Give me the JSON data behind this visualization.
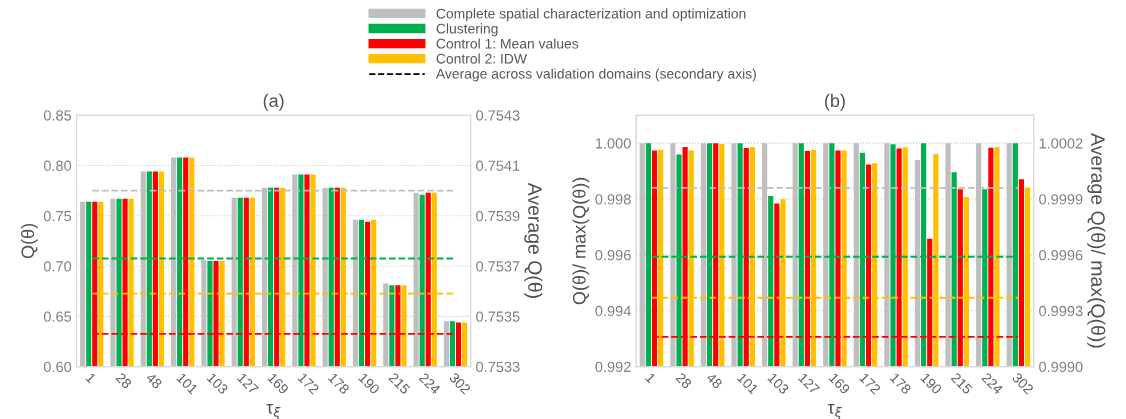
{
  "chart_data": [
    {
      "type": "bar",
      "title": "(a)",
      "xlabel": "τ$_{ξ}$",
      "ylabel": "Q(θ)",
      "y2label": "Average Q(θ)",
      "categories": [
        "1",
        "28",
        "48",
        "101",
        "103",
        "127",
        "169",
        "172",
        "178",
        "190",
        "215",
        "224",
        "302"
      ],
      "series": [
        {
          "name": "Complete spatial characterization and optimization",
          "color": "#bfbfbf",
          "values": [
            0.764,
            0.767,
            0.794,
            0.808,
            0.706,
            0.768,
            0.778,
            0.791,
            0.778,
            0.746,
            0.683,
            0.773,
            0.645
          ]
        },
        {
          "name": "Clustering",
          "color": "#00b050",
          "values": [
            0.764,
            0.767,
            0.794,
            0.808,
            0.705,
            0.768,
            0.778,
            0.791,
            0.778,
            0.746,
            0.681,
            0.771,
            0.645
          ]
        },
        {
          "name": "Control 1: Mean values",
          "color": "#ff0000",
          "values": [
            0.764,
            0.767,
            0.794,
            0.808,
            0.705,
            0.768,
            0.778,
            0.791,
            0.778,
            0.744,
            0.681,
            0.773,
            0.644
          ]
        },
        {
          "name": "Control 2: IDW",
          "color": "#ffc000",
          "values": [
            0.764,
            0.767,
            0.794,
            0.808,
            0.705,
            0.768,
            0.778,
            0.791,
            0.778,
            0.746,
            0.681,
            0.773,
            0.644
          ]
        }
      ],
      "ylim": [
        0.6,
        0.85
      ],
      "yticks": [
        {
          "value": 0.6,
          "label": "0.60"
        },
        0.65,
        {
          "value": 0.7,
          "label": "0.70"
        },
        0.75,
        {
          "value": 0.8,
          "label": "0.80"
        },
        0.85
      ],
      "y2lim": [
        0.7533,
        0.7543
      ],
      "y2ticks": [
        0.7533,
        0.7535,
        0.7537,
        0.7539,
        0.7541,
        0.7543
      ],
      "ref_lines": [
        {
          "axis": "y2",
          "value": 0.754,
          "color": "#bfbfbf",
          "line_style": "dashed"
        },
        {
          "axis": "y2",
          "value": 0.75373,
          "color": "#00b050",
          "line_style": "dashed"
        },
        {
          "axis": "y2",
          "value": 0.75343,
          "color": "#ff0000",
          "line_style": "dashed"
        },
        {
          "axis": "y2",
          "value": 0.75359,
          "color": "#ffc000",
          "line_style": "dashed"
        }
      ],
      "annotations": [
        "Average across validation domains (secondary axis)"
      ],
      "grid": "y",
      "legend": "top"
    },
    {
      "type": "bar",
      "title": "(b)",
      "xlabel": "τ$_{ξ}$",
      "ylabel": "Q(θ)/ max(Q(θ))",
      "y2label": "Average Q(θ)/ max(Q(θ))",
      "categories": [
        "1",
        "28",
        "48",
        "101",
        "103",
        "127",
        "169",
        "172",
        "178",
        "190",
        "215",
        "224",
        "302"
      ],
      "series": [
        {
          "color": "#bfbfbf",
          "values": [
            1.0,
            1.0,
            1.0,
            1.0,
            1.0,
            1.0,
            1.0,
            1.0,
            1.0,
            0.9994,
            1.0,
            1.0,
            1.0
          ]
        },
        {
          "color": "#00b050",
          "values": [
            1.0,
            0.99959,
            1.0,
            1.0,
            0.99811,
            1.0,
            1.0,
            0.99966,
            0.99996,
            1.0,
            0.99896,
            0.99835,
            1.0
          ]
        },
        {
          "color": "#ff0000",
          "values": [
            0.99974,
            0.99986,
            1.0,
            0.99983,
            0.99784,
            0.99972,
            0.99974,
            0.99924,
            0.99981,
            0.99658,
            0.99835,
            0.99984,
            0.99871
          ]
        },
        {
          "color": "#ffc000",
          "values": [
            0.99976,
            0.99975,
            0.99997,
            0.99986,
            0.99799,
            0.99976,
            0.99974,
            0.99928,
            0.99985,
            0.99961,
            0.99807,
            0.99986,
            0.99841
          ]
        }
      ],
      "ylim": [
        0.992,
        1.001
      ],
      "yticks": [
        0.992,
        0.994,
        0.996,
        0.998,
        {
          "value": 1.0,
          "label": "1.000"
        }
      ],
      "y2lim": [
        0.999,
        1.00035
      ],
      "y2ticks": [
        {
          "value": 0.999,
          "label": "0.9990"
        },
        0.9993,
        0.9996,
        0.9999,
        1.0002
      ],
      "ref_lines": [
        {
          "axis": "y2",
          "value": 0.99996,
          "color": "#bfbfbf",
          "line_style": "dashed"
        },
        {
          "axis": "y2",
          "value": 0.99959,
          "color": "#00b050",
          "line_style": "dashed"
        },
        {
          "axis": "y2",
          "value": 0.99916,
          "color": "#ff0000",
          "line_style": "dashed"
        },
        {
          "axis": "y2",
          "value": 0.99937,
          "color": "#ffc000",
          "line_style": "dashed"
        }
      ],
      "grid": "y"
    }
  ]
}
